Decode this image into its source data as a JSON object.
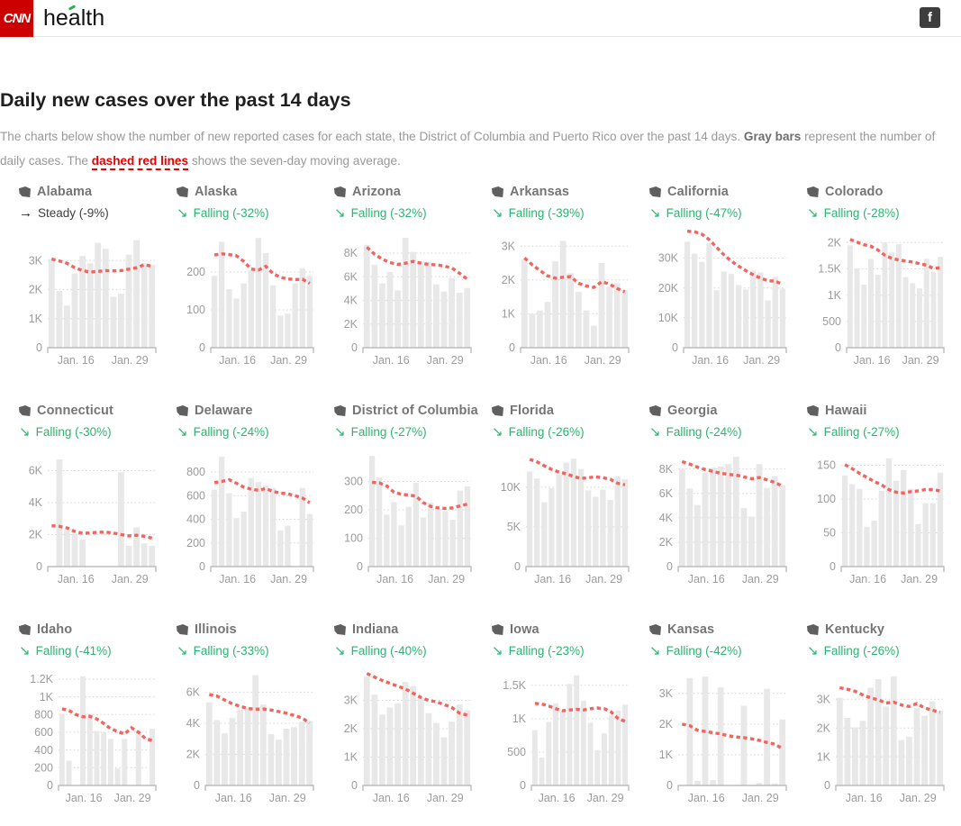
{
  "header": {
    "brand": "CNN",
    "section": "health",
    "facebook": "f"
  },
  "title": "Daily new cases over the past 14 days",
  "description": {
    "seg1": "The charts below show the number of new reported cases for each state, the District of Columbia and Puerto Rico over the past 14 days. ",
    "bold1": "Gray bars",
    "seg2": " represent the number of daily cases. The ",
    "red": "dashed red lines",
    "seg3": " shows the seven-day moving average."
  },
  "colors": {
    "brand_red": "#cc0000",
    "accent_green": "#26b34b",
    "green": "#2db473",
    "line_red": "#f4635e",
    "text_red": "#e60000",
    "bar": "#e8e8e8",
    "grid": "#d4d4d4",
    "axis": "#b0b0b0",
    "axis_text": "#9c9c9c"
  },
  "xlabels": [
    "Jan. 16",
    "Jan. 29"
  ],
  "chart_data": [
    {
      "type": "bar-line",
      "state": "Alabama",
      "trend": "Steady (-9%)",
      "direction": "steady",
      "ymax": 3900,
      "yticks": [
        [
          "3K",
          3000
        ],
        [
          "2K",
          2000
        ],
        [
          "1K",
          1000
        ],
        [
          "0",
          0
        ]
      ],
      "bars": [
        3050,
        1950,
        1450,
        2550,
        3150,
        2900,
        3600,
        3400,
        1750,
        1850,
        3200,
        3700,
        2900,
        2850
      ],
      "avg": [
        3050,
        2980,
        2900,
        2750,
        2650,
        2600,
        2620,
        2650,
        2640,
        2650,
        2700,
        2750,
        2850,
        2800
      ]
    },
    {
      "type": "bar-line",
      "state": "Alaska",
      "trend": "Falling (-32%)",
      "direction": "falling",
      "ymax": 300,
      "yticks": [
        [
          "200",
          200
        ],
        [
          "100",
          100
        ],
        [
          "0",
          0
        ]
      ],
      "bars": [
        190,
        280,
        155,
        130,
        170,
        205,
        290,
        250,
        165,
        85,
        90,
        170,
        210,
        190
      ],
      "avg": [
        245,
        248,
        246,
        243,
        228,
        208,
        205,
        215,
        196,
        186,
        182,
        180,
        181,
        170
      ]
    },
    {
      "type": "bar-line",
      "state": "Arizona",
      "trend": "Falling (-32%)",
      "direction": "falling",
      "ymax": 9600,
      "yticks": [
        [
          "8K",
          8000
        ],
        [
          "6K",
          6000
        ],
        [
          "4K",
          4000
        ],
        [
          "2K",
          2000
        ],
        [
          "0",
          0
        ]
      ],
      "bars": [
        8700,
        7000,
        5450,
        6400,
        4850,
        9300,
        8100,
        7300,
        7250,
        5350,
        4750,
        5900,
        4650,
        5050
      ],
      "avg": [
        8500,
        7900,
        7500,
        7200,
        7050,
        7150,
        7300,
        7150,
        7050,
        7000,
        6900,
        6750,
        6300,
        5800
      ]
    },
    {
      "type": "bar-line",
      "state": "Arkansas",
      "trend": "Falling (-39%)",
      "direction": "falling",
      "ymax": 3350,
      "yticks": [
        [
          "3K",
          3000
        ],
        [
          "2K",
          2000
        ],
        [
          "1K",
          1000
        ],
        [
          "0",
          0
        ]
      ],
      "bars": [
        2600,
        1000,
        1100,
        1350,
        2550,
        3150,
        2200,
        1650,
        1100,
        650,
        2500,
        1800,
        1900,
        1700
      ],
      "avg": [
        2650,
        2450,
        2280,
        2120,
        2050,
        2080,
        2100,
        1900,
        1820,
        1780,
        1950,
        1880,
        1750,
        1650
      ]
    },
    {
      "type": "bar-line",
      "state": "California",
      "trend": "Falling (-47%)",
      "direction": "falling",
      "ymax": 38000,
      "yticks": [
        [
          "30K",
          30000
        ],
        [
          "20K",
          20000
        ],
        [
          "10K",
          10000
        ],
        [
          "0",
          0
        ]
      ],
      "bars": [
        35500,
        31500,
        28700,
        35000,
        19200,
        25500,
        24700,
        21000,
        19500,
        25800,
        25200,
        15800,
        23700,
        19800
      ],
      "avg": [
        39000,
        38800,
        38000,
        36200,
        33600,
        31100,
        29000,
        27300,
        25800,
        24400,
        23300,
        22400,
        22300,
        21200
      ]
    },
    {
      "type": "bar-line",
      "state": "Colorado",
      "trend": "Falling (-28%)",
      "direction": "falling",
      "ymax": 2160,
      "yticks": [
        [
          "2K",
          2000
        ],
        [
          "1.5K",
          1500
        ],
        [
          "1K",
          1000
        ],
        [
          "500",
          500
        ],
        [
          "0",
          0
        ]
      ],
      "bars": [
        1950,
        1510,
        1200,
        1690,
        1390,
        2000,
        1810,
        1970,
        1340,
        1230,
        1130,
        1690,
        1450,
        1730
      ],
      "avg": [
        2060,
        2010,
        1960,
        1930,
        1860,
        1760,
        1700,
        1670,
        1650,
        1630,
        1600,
        1570,
        1510,
        1520
      ]
    },
    {
      "type": "bar-line",
      "state": "Connecticut",
      "trend": "Falling (-30%)",
      "direction": "falling",
      "ymax": 7100,
      "yticks": [
        [
          "6K",
          6000
        ],
        [
          "4K",
          4000
        ],
        [
          "2K",
          2000
        ],
        [
          "0",
          0
        ]
      ],
      "bars": [
        0,
        6700,
        2300,
        2050,
        1700,
        0,
        0,
        0,
        0,
        5900,
        1300,
        2450,
        1450,
        1300
      ],
      "avg": [
        2550,
        2520,
        2420,
        2200,
        2080,
        2100,
        2150,
        2150,
        2100,
        2000,
        1920,
        1960,
        1900,
        1780
      ]
    },
    {
      "type": "bar-line",
      "state": "Delaware",
      "trend": "Falling (-24%)",
      "direction": "falling",
      "ymax": 960,
      "yticks": [
        [
          "800",
          800
        ],
        [
          "600",
          600
        ],
        [
          "400",
          400
        ],
        [
          "200",
          200
        ],
        [
          "0",
          0
        ]
      ],
      "bars": [
        650,
        930,
        620,
        410,
        465,
        750,
        715,
        685,
        665,
        305,
        345,
        0,
        665,
        445
      ],
      "avg": [
        710,
        720,
        735,
        705,
        672,
        655,
        645,
        660,
        635,
        622,
        615,
        600,
        580,
        540
      ]
    },
    {
      "type": "bar-line",
      "state": "District of Columbia",
      "trend": "Falling (-27%)",
      "direction": "falling",
      "ymax": 400,
      "yticks": [
        [
          "300",
          300
        ],
        [
          "200",
          200
        ],
        [
          "100",
          100
        ],
        [
          "0",
          0
        ]
      ],
      "bars": [
        390,
        315,
        183,
        228,
        145,
        210,
        295,
        173,
        225,
        205,
        195,
        165,
        268,
        283
      ],
      "avg": [
        297,
        295,
        284,
        262,
        255,
        252,
        248,
        225,
        212,
        207,
        205,
        207,
        214,
        220
      ]
    },
    {
      "type": "bar-line",
      "state": "Florida",
      "trend": "Falling (-26%)",
      "direction": "falling",
      "ymax": 14300,
      "yticks": [
        [
          "10K",
          10000
        ],
        [
          "5K",
          5000
        ],
        [
          "0",
          0
        ]
      ],
      "bars": [
        12000,
        11100,
        8100,
        9900,
        11600,
        13100,
        13600,
        12300,
        9600,
        8800,
        9700,
        8400,
        11400,
        11000
      ],
      "avg": [
        13500,
        13200,
        12700,
        12250,
        11900,
        11700,
        11350,
        11100,
        11200,
        11300,
        11200,
        11000,
        10500,
        10300
      ]
    },
    {
      "type": "bar-line",
      "state": "Georgia",
      "trend": "Falling (-24%)",
      "direction": "falling",
      "ymax": 9300,
      "yticks": [
        [
          "8K",
          8000
        ],
        [
          "6K",
          6000
        ],
        [
          "4K",
          4000
        ],
        [
          "2K",
          2000
        ],
        [
          "0",
          0
        ]
      ],
      "bars": [
        8000,
        6400,
        5050,
        7700,
        8100,
        8200,
        8400,
        9000,
        4800,
        4100,
        8400,
        6450,
        7400,
        6650
      ],
      "avg": [
        8600,
        8400,
        8150,
        7950,
        7800,
        7650,
        7550,
        7500,
        7350,
        7200,
        7300,
        7100,
        6900,
        6600
      ]
    },
    {
      "type": "bar-line",
      "state": "Hawaii",
      "trend": "Falling (-27%)",
      "direction": "falling",
      "ymax": 168,
      "yticks": [
        [
          "150",
          150
        ],
        [
          "100",
          100
        ],
        [
          "50",
          50
        ],
        [
          "0",
          0
        ]
      ],
      "bars": [
        135,
        122,
        115,
        59,
        68,
        112,
        160,
        127,
        143,
        115,
        63,
        94,
        94,
        139
      ],
      "avg": [
        151,
        145,
        138,
        132,
        126,
        121,
        114,
        110,
        109,
        111,
        112,
        114,
        114,
        112
      ]
    },
    {
      "type": "bar-line",
      "state": "Idaho",
      "trend": "Falling (-41%)",
      "direction": "falling",
      "ymax": 1280,
      "yticks": [
        [
          "1.2K",
          1200
        ],
        [
          "1K",
          1000
        ],
        [
          "800",
          800
        ],
        [
          "600",
          600
        ],
        [
          "400",
          400
        ],
        [
          "200",
          200
        ],
        [
          "0",
          0
        ]
      ],
      "bars": [
        810,
        280,
        0,
        1230,
        810,
        615,
        600,
        525,
        190,
        525,
        0,
        620,
        0,
        640
      ],
      "avg": [
        865,
        845,
        800,
        775,
        780,
        750,
        700,
        640,
        610,
        580,
        650,
        600,
        530,
        505
      ]
    },
    {
      "type": "bar-line",
      "state": "Illinois",
      "trend": "Falling (-33%)",
      "direction": "falling",
      "ymax": 7300,
      "yticks": [
        [
          "6K",
          6000
        ],
        [
          "4K",
          4000
        ],
        [
          "2K",
          2000
        ],
        [
          "0",
          0
        ]
      ],
      "bars": [
        5350,
        4200,
        3350,
        4350,
        4900,
        5000,
        7100,
        5200,
        3300,
        2950,
        3650,
        3750,
        4100,
        4150
      ],
      "avg": [
        5850,
        5750,
        5500,
        5250,
        5100,
        4950,
        4900,
        4920,
        4850,
        4750,
        4650,
        4500,
        4350,
        4020
      ]
    },
    {
      "type": "bar-line",
      "state": "Indiana",
      "trend": "Falling (-40%)",
      "direction": "falling",
      "ymax": 4000,
      "yticks": [
        [
          "3K",
          3000
        ],
        [
          "2K",
          2000
        ],
        [
          "1K",
          1000
        ],
        [
          "0",
          0
        ]
      ],
      "bars": [
        3850,
        3200,
        2500,
        2750,
        2900,
        3650,
        3500,
        3100,
        2550,
        2200,
        1700,
        2250,
        2850,
        2650
      ],
      "avg": [
        3950,
        3820,
        3700,
        3600,
        3500,
        3400,
        3250,
        3100,
        3000,
        2950,
        2850,
        2750,
        2550,
        2480
      ]
    },
    {
      "type": "bar-line",
      "state": "Iowa",
      "trend": "Falling (-23%)",
      "direction": "falling",
      "ymax": 1700,
      "yticks": [
        [
          "1.5K",
          1500
        ],
        [
          "1K",
          1000
        ],
        [
          "500",
          500
        ],
        [
          "0",
          0
        ]
      ],
      "bars": [
        830,
        420,
        950,
        1230,
        1100,
        1520,
        1650,
        1270,
        940,
        530,
        780,
        1050,
        1120,
        1210
      ],
      "avg": [
        1230,
        1220,
        1190,
        1150,
        1120,
        1130,
        1140,
        1130,
        1150,
        1160,
        1150,
        1100,
        1000,
        960
      ]
    },
    {
      "type": "bar-line",
      "state": "Kansas",
      "trend": "Falling (-42%)",
      "direction": "falling",
      "ymax": 3700,
      "yticks": [
        [
          "3K",
          3000
        ],
        [
          "2K",
          2000
        ],
        [
          "1K",
          1000
        ],
        [
          "0",
          0
        ]
      ],
      "bars": [
        0,
        3500,
        150,
        3550,
        170,
        3200,
        0,
        0,
        2600,
        0,
        80,
        3150,
        70,
        2150
      ],
      "avg": [
        2000,
        1950,
        1800,
        1760,
        1720,
        1680,
        1620,
        1580,
        1560,
        1520,
        1470,
        1400,
        1350,
        1200
      ]
    },
    {
      "type": "bar-line",
      "state": "Kentucky",
      "trend": "Falling (-26%)",
      "direction": "falling",
      "ymax": 3950,
      "yticks": [
        [
          "3K",
          3000
        ],
        [
          "2K",
          2000
        ],
        [
          "1K",
          1000
        ],
        [
          "0",
          0
        ]
      ],
      "bars": [
        3050,
        2350,
        2020,
        2250,
        3400,
        3700,
        2750,
        3800,
        1580,
        1700,
        2700,
        2430,
        2930,
        2600
      ],
      "avg": [
        3400,
        3350,
        3280,
        3150,
        3050,
        2980,
        2870,
        2900,
        2800,
        2750,
        2850,
        2700,
        2620,
        2550
      ]
    }
  ]
}
